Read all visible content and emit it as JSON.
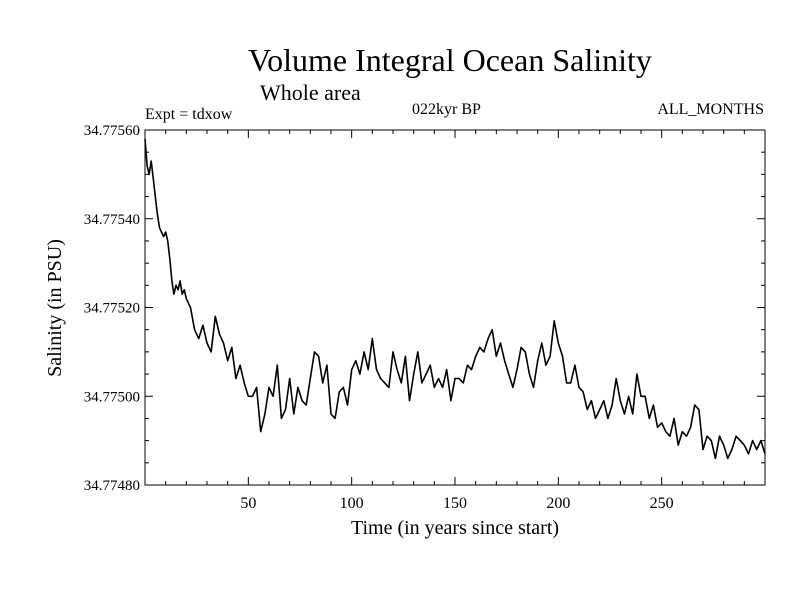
{
  "chart_data": {
    "type": "line",
    "title": "Volume Integral Ocean Salinity",
    "subtitle": "Whole area",
    "annotations": {
      "experiment": "Expt = tdxow",
      "period": "022kyr BP",
      "months": "ALL_MONTHS"
    },
    "xlabel": "Time (in years since start)",
    "ylabel": "Salinity (in PSU)",
    "xlim": [
      0,
      300
    ],
    "ylim": [
      34.7748,
      34.7756
    ],
    "xticks": [
      50,
      100,
      150,
      200,
      250
    ],
    "xtick_labels": [
      "50",
      "100",
      "150",
      "200",
      "250"
    ],
    "yticks": [
      34.7748,
      34.775,
      34.7752,
      34.7754,
      34.7756
    ],
    "ytick_labels": [
      "34.77480",
      "34.77500",
      "34.77520",
      "34.77540",
      "34.77560"
    ],
    "grid": false,
    "series": [
      {
        "color": "#000000",
        "x": [
          0,
          1,
          2,
          3,
          4,
          5,
          6,
          7,
          8,
          9,
          10,
          11,
          12,
          13,
          14,
          15,
          16,
          17,
          18,
          19,
          20,
          22,
          24,
          26,
          28,
          30,
          32,
          34,
          36,
          38,
          40,
          42,
          44,
          46,
          48,
          50,
          52,
          54,
          56,
          58,
          60,
          62,
          64,
          66,
          68,
          70,
          72,
          74,
          76,
          78,
          80,
          82,
          84,
          86,
          88,
          90,
          92,
          94,
          96,
          98,
          100,
          102,
          104,
          106,
          108,
          110,
          112,
          114,
          116,
          118,
          120,
          122,
          124,
          126,
          128,
          130,
          132,
          134,
          136,
          138,
          140,
          142,
          144,
          146,
          148,
          150,
          152,
          154,
          156,
          158,
          160,
          162,
          164,
          166,
          168,
          170,
          172,
          174,
          176,
          178,
          180,
          182,
          184,
          186,
          188,
          190,
          192,
          194,
          196,
          198,
          200,
          202,
          204,
          206,
          208,
          210,
          212,
          214,
          216,
          218,
          220,
          222,
          224,
          226,
          228,
          230,
          232,
          234,
          236,
          238,
          240,
          242,
          244,
          246,
          248,
          250,
          252,
          254,
          256,
          258,
          260,
          262,
          264,
          266,
          268,
          270,
          272,
          274,
          276,
          278,
          280,
          282,
          284,
          286,
          288,
          290,
          292,
          294,
          296,
          298,
          300
        ],
        "values": [
          34.77558,
          34.77552,
          34.7755,
          34.77553,
          34.77549,
          34.77545,
          34.77541,
          34.77538,
          34.77537,
          34.77536,
          34.77537,
          34.77535,
          34.77531,
          34.77526,
          34.77523,
          34.77525,
          34.77524,
          34.77526,
          34.77523,
          34.77524,
          34.77522,
          34.7752,
          34.77515,
          34.77513,
          34.77516,
          34.77512,
          34.7751,
          34.77518,
          34.77514,
          34.77512,
          34.77508,
          34.77511,
          34.77504,
          34.77507,
          34.77503,
          34.775,
          34.775,
          34.77502,
          34.77492,
          34.77496,
          34.77502,
          34.775,
          34.77507,
          34.77495,
          34.77497,
          34.77504,
          34.77496,
          34.77502,
          34.77499,
          34.77498,
          34.77504,
          34.7751,
          34.77509,
          34.77503,
          34.77507,
          34.77496,
          34.77495,
          34.77501,
          34.77502,
          34.77498,
          34.77506,
          34.77508,
          34.77505,
          34.7751,
          34.77506,
          34.77513,
          34.77506,
          34.77504,
          34.77503,
          34.77502,
          34.7751,
          34.77506,
          34.77503,
          34.77509,
          34.77499,
          34.77505,
          34.7751,
          34.77503,
          34.77505,
          34.77507,
          34.77502,
          34.77504,
          34.77502,
          34.77506,
          34.77499,
          34.77504,
          34.77504,
          34.77503,
          34.77507,
          34.77506,
          34.77509,
          34.77511,
          34.7751,
          34.77513,
          34.77515,
          34.77509,
          34.77512,
          34.77508,
          34.77505,
          34.77502,
          34.77506,
          34.77511,
          34.7751,
          34.77505,
          34.77502,
          34.77508,
          34.77512,
          34.77507,
          34.77509,
          34.77517,
          34.77512,
          34.77509,
          34.77503,
          34.77503,
          34.77507,
          34.77502,
          34.77501,
          34.77497,
          34.77499,
          34.77495,
          34.77497,
          34.77499,
          34.77495,
          34.77498,
          34.77504,
          34.77499,
          34.77496,
          34.775,
          34.77496,
          34.77505,
          34.775,
          34.775,
          34.77495,
          34.77498,
          34.77493,
          34.77494,
          34.77492,
          34.77491,
          34.77495,
          34.77489,
          34.77492,
          34.77491,
          34.77493,
          34.77498,
          34.77497,
          34.77488,
          34.77491,
          34.7749,
          34.77486,
          34.77491,
          34.77489,
          34.77486,
          34.77488,
          34.77491,
          34.7749,
          34.77489,
          34.77487,
          34.7749,
          34.77488,
          34.7749,
          34.77487
        ]
      }
    ]
  }
}
